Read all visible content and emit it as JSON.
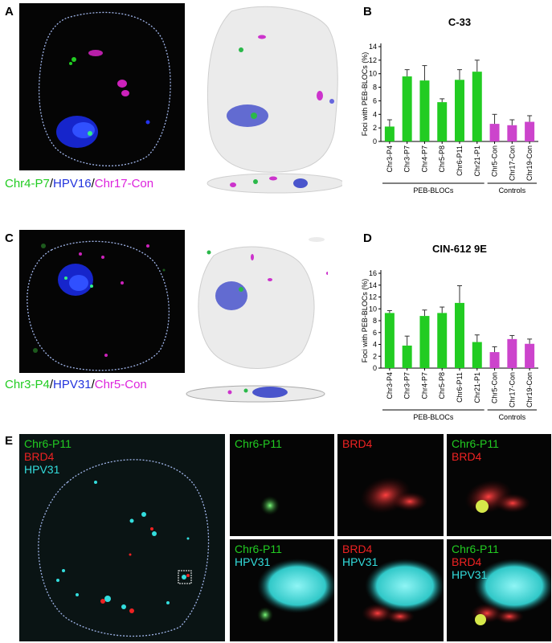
{
  "panels": {
    "A": {
      "letter": "A",
      "caption": [
        "Chr4-P7",
        "/",
        "HPV16",
        "/",
        "Chr17-Con"
      ]
    },
    "B": {
      "letter": "B"
    },
    "C": {
      "letter": "C",
      "caption": [
        "Chr3-P4",
        "/",
        "HPV31",
        "/",
        "Chr5-Con"
      ]
    },
    "D": {
      "letter": "D"
    },
    "E": {
      "letter": "E",
      "main_labels": [
        "Chr6-P11",
        "BRD4",
        "HPV31"
      ],
      "tiles": [
        [
          "Chr6-P11"
        ],
        [
          "BRD4"
        ],
        [
          "Chr6-P11",
          "BRD4"
        ],
        [
          "Chr6-P11",
          "HPV31"
        ],
        [
          "BRD4",
          "HPV31"
        ],
        [
          "Chr6-P11",
          "BRD4",
          "HPV31"
        ]
      ]
    }
  },
  "colors": {
    "green": "#22cc22",
    "blue": "#2233dd",
    "magenta": "#dd22dd",
    "red": "#ee2222",
    "cyan": "#33dddd",
    "bar_green": "#22cc22",
    "bar_magenta": "#cc44cc"
  },
  "chart_data": [
    {
      "type": "bar",
      "title": "C-33",
      "ylabel": "Foci with PEB-BLOCs (%)",
      "ylim": [
        0,
        14
      ],
      "yticks": [
        0,
        2,
        4,
        6,
        8,
        10,
        12,
        14
      ],
      "categories": [
        "Chr3-P4",
        "Chr3-P7",
        "Chr4-P7",
        "Chr5-P8",
        "Chr6-P11",
        "Chr21-P1",
        "Chr5-Con",
        "Chr17-Con",
        "Chr19-Con"
      ],
      "values": [
        2.2,
        9.6,
        9.0,
        5.8,
        9.1,
        10.3,
        2.6,
        2.4,
        2.9
      ],
      "errors": [
        1.0,
        1.0,
        2.2,
        0.5,
        1.5,
        1.7,
        1.4,
        0.8,
        0.9
      ],
      "bar_groups": [
        "green",
        "green",
        "green",
        "green",
        "green",
        "green",
        "magenta",
        "magenta",
        "magenta"
      ],
      "groups": [
        {
          "label": "PEB-BLOCs",
          "from": 0,
          "to": 5
        },
        {
          "label": "Controls",
          "from": 6,
          "to": 8
        }
      ]
    },
    {
      "type": "bar",
      "title": "CIN-612 9E",
      "ylabel": "Foci with PEB-BLOCs (%)",
      "ylim": [
        0,
        16
      ],
      "yticks": [
        0,
        2,
        4,
        6,
        8,
        10,
        12,
        14,
        16
      ],
      "categories": [
        "Chr3-P4",
        "Chr3-P7",
        "Chr4-P7",
        "Chr5-P8",
        "Chr6-P11",
        "Chr21-P1",
        "Chr5-Con",
        "Chr17-Con",
        "Chr19-Con"
      ],
      "values": [
        9.3,
        3.8,
        8.8,
        9.3,
        11.0,
        4.4,
        2.7,
        4.9,
        4.1
      ],
      "errors": [
        0.4,
        1.6,
        1.0,
        1.0,
        2.9,
        1.2,
        0.9,
        0.6,
        0.8
      ],
      "bar_groups": [
        "green",
        "green",
        "green",
        "green",
        "green",
        "green",
        "magenta",
        "magenta",
        "magenta"
      ],
      "groups": [
        {
          "label": "PEB-BLOCs",
          "from": 0,
          "to": 5
        },
        {
          "label": "Controls",
          "from": 6,
          "to": 8
        }
      ]
    }
  ]
}
